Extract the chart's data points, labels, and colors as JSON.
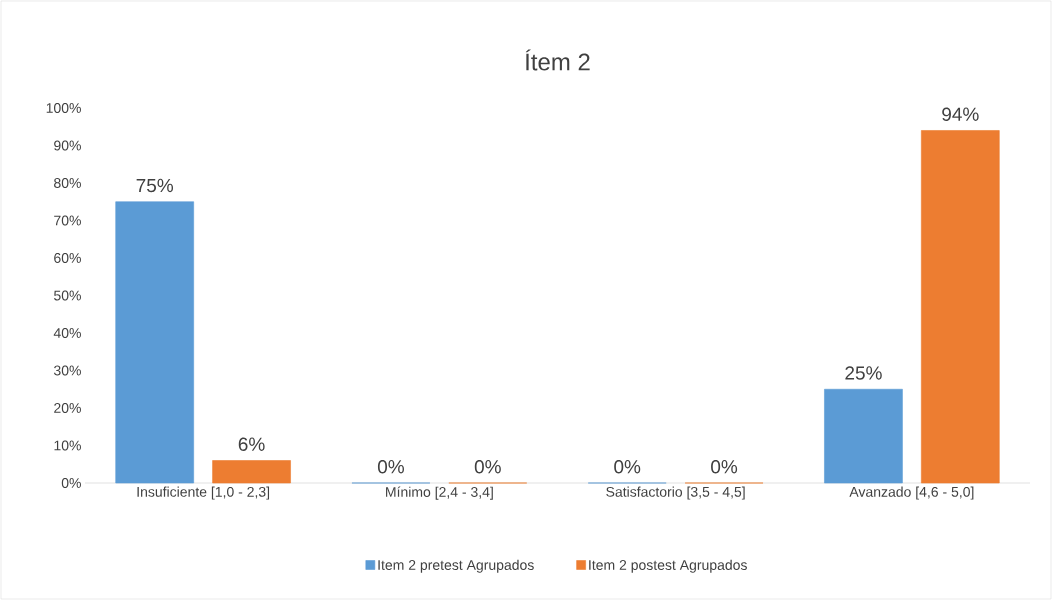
{
  "chart_data": {
    "type": "bar",
    "title": "Ítem 2",
    "categories": [
      "Insuficiente [1,0 - 2,3]",
      "Mínimo [2,4 - 3,4]",
      "Satisfactorio [3,5 - 4,5]",
      "Avanzado [4,6 - 5,0]"
    ],
    "series": [
      {
        "name": "Item 2 pretest Agrupados",
        "color": "#5b9bd5",
        "values": [
          75,
          0,
          0,
          25
        ],
        "value_labels": [
          "75%",
          "0%",
          "0%",
          "25%"
        ]
      },
      {
        "name": "Item 2 postest Agrupados",
        "color": "#ed7d31",
        "values": [
          6,
          0,
          0,
          94
        ],
        "value_labels": [
          "6%",
          "0%",
          "0%",
          "94%"
        ]
      }
    ],
    "ylim": [
      0,
      100
    ],
    "yticks": [
      {
        "value": 0,
        "label": "0%"
      },
      {
        "value": 10,
        "label": "10%"
      },
      {
        "value": 20,
        "label": "20%"
      },
      {
        "value": 30,
        "label": "30%"
      },
      {
        "value": 40,
        "label": "40%"
      },
      {
        "value": 50,
        "label": "50%"
      },
      {
        "value": 60,
        "label": "60%"
      },
      {
        "value": 70,
        "label": "70%"
      },
      {
        "value": 80,
        "label": "80%"
      },
      {
        "value": 90,
        "label": "90%"
      },
      {
        "value": 100,
        "label": "100%"
      }
    ],
    "legend": "bottom"
  }
}
